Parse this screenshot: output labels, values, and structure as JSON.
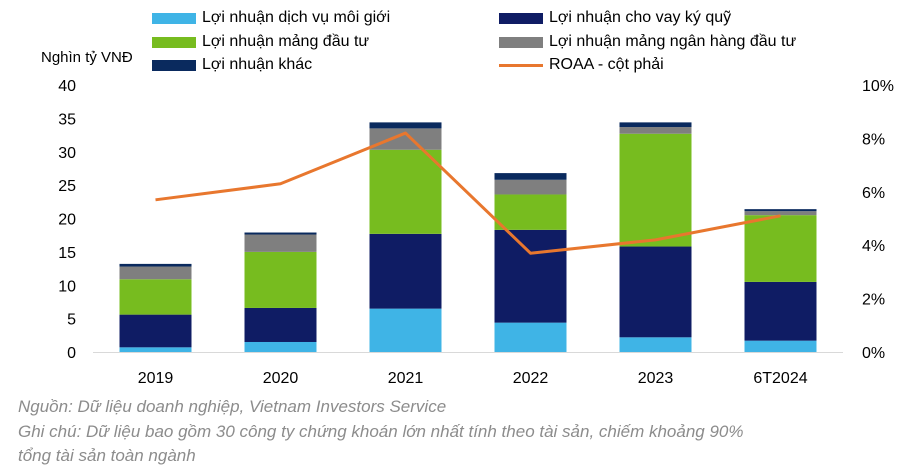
{
  "chart_data": {
    "type": "bar",
    "stacked": true,
    "categories": [
      "2019",
      "2020",
      "2021",
      "2022",
      "2023",
      "6T2024"
    ],
    "ylabel": "Nghìn tỷ VNĐ",
    "ylim": [
      0,
      40
    ],
    "yticks": [
      "0",
      "5",
      "10",
      "15",
      "20",
      "25",
      "30",
      "35",
      "40"
    ],
    "y2lim": [
      0,
      10
    ],
    "y2ticks": [
      "0%",
      "2%",
      "4%",
      "6%",
      "8%",
      "10%"
    ],
    "grid": false,
    "legend_position": "top",
    "series": [
      {
        "name": "Lợi nhuận dịch vụ môi giới",
        "color": "#3fb4e6",
        "values": [
          0.7,
          1.5,
          6.5,
          4.4,
          2.2,
          1.7
        ]
      },
      {
        "name": "Lợi nhuận cho vay ký quỹ",
        "color": "#0f1c64",
        "values": [
          4.9,
          5.1,
          11.2,
          13.9,
          13.6,
          8.8
        ]
      },
      {
        "name": "Lợi nhuận mảng đầu tư",
        "color": "#77bc1f",
        "values": [
          5.3,
          8.4,
          12.6,
          5.3,
          16.9,
          10.0
        ]
      },
      {
        "name": "Lợi nhuận mảng ngân hàng đầu tư",
        "color": "#7f7f7f",
        "values": [
          1.9,
          2.6,
          3.2,
          2.2,
          1.0,
          0.6
        ]
      },
      {
        "name": "Lợi nhuận khác",
        "color": "#0a2a5e",
        "values": [
          0.4,
          0.3,
          0.9,
          1.0,
          0.7,
          0.3
        ]
      }
    ],
    "line_series": {
      "name": "ROAA - cột phải",
      "color": "#e8772e",
      "axis": "right",
      "values": [
        5.7,
        6.3,
        8.2,
        3.7,
        4.2,
        5.1
      ]
    }
  },
  "footnotes": {
    "source": "Nguồn: Dữ liệu doanh nghiệp, Vietnam Investors Service",
    "note_line1": "Ghi chú: Dữ liệu bao gồm 30 công ty chứng khoán lớn nhất tính theo tài sản, chiếm khoảng 90%",
    "note_line2": "tổng tài sản toàn ngành"
  }
}
